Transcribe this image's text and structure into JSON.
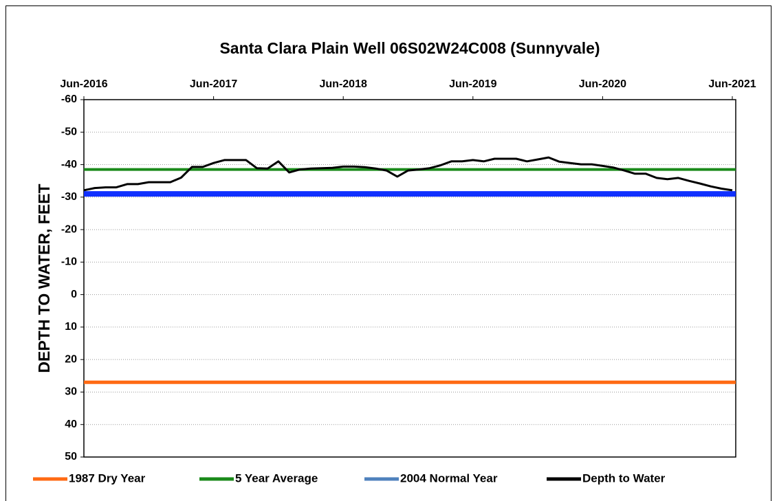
{
  "chart_data": {
    "type": "line",
    "title": "Santa Clara Plain Well 06S02W24C008  (Sunnyvale)",
    "y_label": "DEPTH TO WATER, FEET",
    "ylim": [
      -60,
      50
    ],
    "y_inverted": true,
    "yticks": [
      -60,
      -50,
      -40,
      -30,
      -20,
      -10,
      0,
      10,
      20,
      30,
      40,
      50
    ],
    "xlim": [
      "2016-06",
      "2021-06"
    ],
    "xticks": [
      {
        "value": "2016-06",
        "label": "Jun-2016"
      },
      {
        "value": "2017-06",
        "label": "Jun-2017"
      },
      {
        "value": "2018-06",
        "label": "Jun-2018"
      },
      {
        "value": "2019-06",
        "label": "Jun-2019"
      },
      {
        "value": "2020-06",
        "label": "Jun-2020"
      },
      {
        "value": "2021-06",
        "label": "Jun-2021"
      }
    ],
    "x_axis_position": "top",
    "grid": true,
    "legend_position": "bottom",
    "hlines": [
      {
        "name": "1987 Dry Year",
        "color": "#ff6a13",
        "value": 27
      },
      {
        "name": "5 Year Average",
        "color": "#1a8a1a",
        "value": -38.5
      },
      {
        "name": "2004 Normal Year",
        "color": "#1030ff",
        "legend_color": "#4f81bd",
        "value": -31
      }
    ],
    "series": [
      {
        "name": "Depth to Water",
        "color": "#000000",
        "x": [
          "2016-06",
          "2016-07",
          "2016-08",
          "2016-09",
          "2016-10",
          "2016-11",
          "2016-12",
          "2017-01",
          "2017-02",
          "2017-03",
          "2017-04",
          "2017-05",
          "2017-06",
          "2017-07",
          "2017-08",
          "2017-09",
          "2017-10",
          "2017-11",
          "2017-12",
          "2018-01",
          "2018-02",
          "2018-03",
          "2018-04",
          "2018-05",
          "2018-06",
          "2018-07",
          "2018-08",
          "2018-09",
          "2018-10",
          "2018-11",
          "2018-12",
          "2019-01",
          "2019-02",
          "2019-03",
          "2019-04",
          "2019-05",
          "2019-06",
          "2019-07",
          "2019-08",
          "2019-09",
          "2019-10",
          "2019-11",
          "2019-12",
          "2020-01",
          "2020-02",
          "2020-03",
          "2020-04",
          "2020-05",
          "2020-06",
          "2020-07",
          "2020-08",
          "2020-09",
          "2020-10",
          "2020-11",
          "2020-12",
          "2021-01",
          "2021-02",
          "2021-03",
          "2021-04",
          "2021-05",
          "2021-06"
        ],
        "values": [
          -32.1,
          -32.8,
          -33,
          -33,
          -34,
          -34,
          -34.6,
          -34.6,
          -34.6,
          -36,
          -39.3,
          -39.3,
          -40.5,
          -41.4,
          -41.4,
          -41.4,
          -38.9,
          -38.8,
          -41,
          -37.6,
          -38.5,
          -38.8,
          -38.9,
          -39,
          -39.4,
          -39.4,
          -39.2,
          -38.8,
          -38.2,
          -36.3,
          -38.2,
          -38.5,
          -38.9,
          -39.8,
          -41,
          -41,
          -41.4,
          -41,
          -41.8,
          -41.8,
          -41.8,
          -41,
          -41.6,
          -42.2,
          -40.9,
          -40.5,
          -40.1,
          -40.1,
          -39.6,
          -39.1,
          -38.2,
          -37.2,
          -37.2,
          -35.9,
          -35.5,
          -35.9,
          -35,
          -34.2,
          -33.3,
          -32.6,
          -32.1
        ]
      }
    ]
  }
}
